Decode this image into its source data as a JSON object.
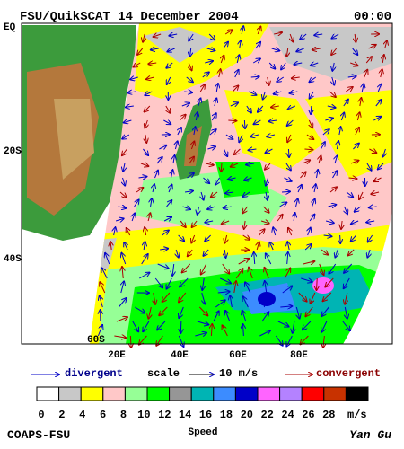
{
  "header": {
    "title": "FSU/QuikSCAT 14 December 2004",
    "time": "00:00"
  },
  "map": {
    "lat_labels": [
      "EQ",
      "20S",
      "40S",
      "60S"
    ],
    "lon_labels": [
      "20E",
      "40E",
      "60E",
      "80E"
    ]
  },
  "legend": {
    "divergent": "divergent",
    "scale": "scale",
    "scale_value": "10 m/s",
    "convergent": "convergent"
  },
  "colorbar": {
    "labels": [
      0,
      2,
      4,
      6,
      8,
      10,
      12,
      14,
      16,
      18,
      20,
      22,
      24,
      26,
      28
    ],
    "unit": "m/s",
    "title": "Speed",
    "colors": [
      "#ffffff",
      "#c8c8c8",
      "#ffff00",
      "#ffc8c8",
      "#96ff96",
      "#00ff00",
      "#969696",
      "#00b4b4",
      "#3c8cff",
      "#0000c8",
      "#ff64ff",
      "#b482ff",
      "#ff0000",
      "#c83200",
      "#000000"
    ]
  },
  "footer": {
    "left": "COAPS-FSU",
    "right": "Yan Gu"
  }
}
